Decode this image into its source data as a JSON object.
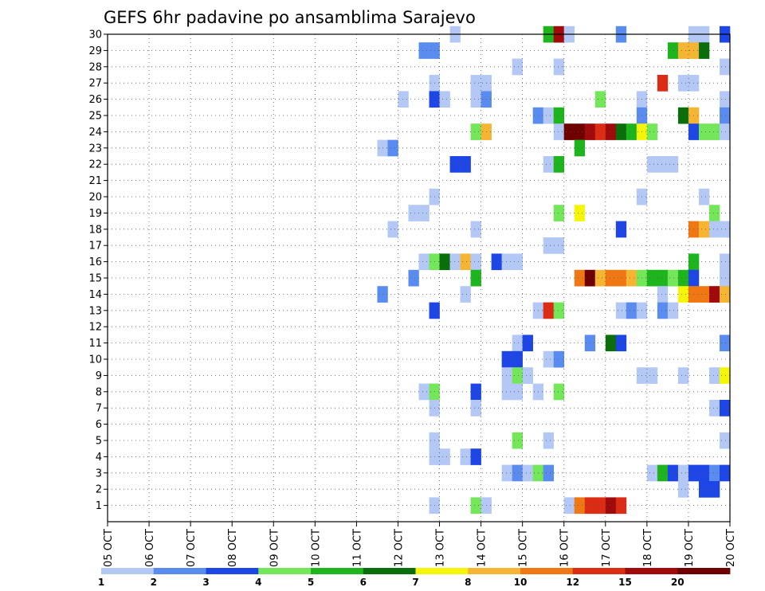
{
  "chart_data": {
    "type": "heatmap",
    "title": "GEFS 6hr padavine po ansamblima Sarajevo",
    "xlabel": "",
    "ylabel": "",
    "x_tick_labels": [
      "05 OCT",
      "06 OCT",
      "07 OCT",
      "08 OCT",
      "09 OCT",
      "10 OCT",
      "11 OCT",
      "12 OCT",
      "13 OCT",
      "14 OCT",
      "15 OCT",
      "16 OCT",
      "17 OCT",
      "18 OCT",
      "19 OCT",
      "20 OCT"
    ],
    "y_tick_labels": [
      "1",
      "2",
      "3",
      "4",
      "5",
      "6",
      "7",
      "8",
      "9",
      "10",
      "11",
      "12",
      "13",
      "14",
      "15",
      "16",
      "17",
      "18",
      "19",
      "20",
      "21",
      "22",
      "23",
      "24",
      "25",
      "26",
      "27",
      "28",
      "29",
      "30"
    ],
    "time_steps_per_day": 4,
    "members_range": [
      0,
      30
    ],
    "grid": true,
    "colorbar": {
      "labels": [
        "1",
        "2",
        "3",
        "4",
        "5",
        "6",
        "7",
        "8",
        "10",
        "12",
        "15",
        "20"
      ],
      "colors": [
        "#b4c8f5",
        "#5a8cf0",
        "#1e46e6",
        "#73e65a",
        "#1eb41e",
        "#0a6e0a",
        "#f5f50a",
        "#f5b432",
        "#f07814",
        "#dc2d14",
        "#a00a0a",
        "#6e0000"
      ]
    },
    "cells": [
      [
        30,
        33,
        1
      ],
      [
        30,
        42,
        5
      ],
      [
        30,
        43,
        11
      ],
      [
        30,
        44,
        1
      ],
      [
        30,
        49,
        2
      ],
      [
        30,
        56,
        1
      ],
      [
        30,
        57,
        1
      ],
      [
        30,
        59,
        3
      ],
      [
        29,
        30,
        2
      ],
      [
        29,
        31,
        2
      ],
      [
        29,
        54,
        5
      ],
      [
        29,
        55,
        8
      ],
      [
        29,
        56,
        8
      ],
      [
        29,
        57,
        6
      ],
      [
        28,
        39,
        1
      ],
      [
        28,
        43,
        1
      ],
      [
        28,
        59,
        1
      ],
      [
        27,
        31,
        1
      ],
      [
        27,
        35,
        1
      ],
      [
        27,
        36,
        1
      ],
      [
        27,
        53,
        10
      ],
      [
        27,
        55,
        1
      ],
      [
        27,
        56,
        1
      ],
      [
        26,
        28,
        1
      ],
      [
        26,
        31,
        3
      ],
      [
        26,
        32,
        1
      ],
      [
        26,
        35,
        1
      ],
      [
        26,
        36,
        2
      ],
      [
        26,
        47,
        4
      ],
      [
        26,
        51,
        1
      ],
      [
        26,
        59,
        1
      ],
      [
        25,
        41,
        2
      ],
      [
        25,
        42,
        1
      ],
      [
        25,
        43,
        5
      ],
      [
        25,
        51,
        2
      ],
      [
        25,
        55,
        6
      ],
      [
        25,
        56,
        8
      ],
      [
        25,
        59,
        2
      ],
      [
        24,
        35,
        4
      ],
      [
        24,
        36,
        8
      ],
      [
        24,
        43,
        1
      ],
      [
        24,
        44,
        12
      ],
      [
        24,
        45,
        12
      ],
      [
        24,
        46,
        11
      ],
      [
        24,
        47,
        10
      ],
      [
        24,
        48,
        11
      ],
      [
        24,
        49,
        6
      ],
      [
        24,
        50,
        5
      ],
      [
        24,
        51,
        7
      ],
      [
        24,
        52,
        4
      ],
      [
        24,
        56,
        3
      ],
      [
        24,
        57,
        4
      ],
      [
        24,
        58,
        4
      ],
      [
        24,
        59,
        1
      ],
      [
        23,
        26,
        1
      ],
      [
        23,
        27,
        2
      ],
      [
        23,
        45,
        5
      ],
      [
        22,
        33,
        3
      ],
      [
        22,
        34,
        3
      ],
      [
        22,
        42,
        1
      ],
      [
        22,
        43,
        5
      ],
      [
        22,
        52,
        1
      ],
      [
        22,
        53,
        1
      ],
      [
        22,
        54,
        1
      ],
      [
        20,
        31,
        1
      ],
      [
        20,
        51,
        1
      ],
      [
        20,
        57,
        1
      ],
      [
        19,
        29,
        1
      ],
      [
        19,
        30,
        1
      ],
      [
        19,
        43,
        4
      ],
      [
        19,
        45,
        7
      ],
      [
        19,
        58,
        4
      ],
      [
        19,
        60,
        10
      ],
      [
        18,
        27,
        1
      ],
      [
        18,
        35,
        1
      ],
      [
        18,
        49,
        3
      ],
      [
        18,
        56,
        9
      ],
      [
        18,
        57,
        8
      ],
      [
        18,
        58,
        1
      ],
      [
        18,
        59,
        1
      ],
      [
        17,
        42,
        1
      ],
      [
        17,
        43,
        1
      ],
      [
        16,
        30,
        1
      ],
      [
        16,
        31,
        4
      ],
      [
        16,
        32,
        6
      ],
      [
        16,
        33,
        1
      ],
      [
        16,
        34,
        8
      ],
      [
        16,
        35,
        1
      ],
      [
        16,
        37,
        3
      ],
      [
        16,
        38,
        1
      ],
      [
        16,
        39,
        1
      ],
      [
        16,
        56,
        5
      ],
      [
        16,
        59,
        1
      ],
      [
        15,
        29,
        2
      ],
      [
        15,
        35,
        5
      ],
      [
        15,
        45,
        9
      ],
      [
        15,
        46,
        12
      ],
      [
        15,
        47,
        8
      ],
      [
        15,
        48,
        9
      ],
      [
        15,
        49,
        9
      ],
      [
        15,
        50,
        8
      ],
      [
        15,
        51,
        4
      ],
      [
        15,
        52,
        5
      ],
      [
        15,
        53,
        5
      ],
      [
        15,
        54,
        4
      ],
      [
        15,
        55,
        5
      ],
      [
        15,
        56,
        3
      ],
      [
        15,
        59,
        1
      ],
      [
        15,
        60,
        2
      ],
      [
        14,
        26,
        2
      ],
      [
        14,
        34,
        1
      ],
      [
        14,
        53,
        1
      ],
      [
        14,
        55,
        7
      ],
      [
        14,
        56,
        9
      ],
      [
        14,
        57,
        9
      ],
      [
        14,
        58,
        11
      ],
      [
        14,
        59,
        8
      ],
      [
        14,
        60,
        4
      ],
      [
        13,
        31,
        3
      ],
      [
        13,
        41,
        1
      ],
      [
        13,
        42,
        10
      ],
      [
        13,
        43,
        4
      ],
      [
        13,
        49,
        1
      ],
      [
        13,
        50,
        2
      ],
      [
        13,
        51,
        1
      ],
      [
        13,
        53,
        2
      ],
      [
        13,
        54,
        1
      ],
      [
        11,
        39,
        1
      ],
      [
        11,
        40,
        3
      ],
      [
        11,
        46,
        2
      ],
      [
        11,
        48,
        6
      ],
      [
        11,
        49,
        3
      ],
      [
        11,
        59,
        2
      ],
      [
        11,
        60,
        4
      ],
      [
        10,
        38,
        3
      ],
      [
        10,
        39,
        3
      ],
      [
        10,
        42,
        1
      ],
      [
        10,
        43,
        2
      ],
      [
        9,
        38,
        1
      ],
      [
        9,
        39,
        4
      ],
      [
        9,
        40,
        1
      ],
      [
        9,
        51,
        1
      ],
      [
        9,
        52,
        1
      ],
      [
        9,
        55,
        1
      ],
      [
        9,
        58,
        1
      ],
      [
        9,
        59,
        7
      ],
      [
        9,
        60,
        1
      ],
      [
        8,
        30,
        1
      ],
      [
        8,
        31,
        4
      ],
      [
        8,
        35,
        3
      ],
      [
        8,
        38,
        1
      ],
      [
        8,
        39,
        1
      ],
      [
        8,
        41,
        1
      ],
      [
        8,
        43,
        4
      ],
      [
        7,
        31,
        1
      ],
      [
        7,
        35,
        1
      ],
      [
        7,
        58,
        1
      ],
      [
        7,
        59,
        3
      ],
      [
        7,
        60,
        12
      ],
      [
        5,
        31,
        1
      ],
      [
        5,
        39,
        4
      ],
      [
        5,
        42,
        1
      ],
      [
        5,
        59,
        1
      ],
      [
        4,
        31,
        1
      ],
      [
        4,
        32,
        1
      ],
      [
        4,
        34,
        1
      ],
      [
        4,
        35,
        3
      ],
      [
        3,
        38,
        1
      ],
      [
        3,
        39,
        2
      ],
      [
        3,
        40,
        1
      ],
      [
        3,
        41,
        4
      ],
      [
        3,
        42,
        2
      ],
      [
        3,
        52,
        1
      ],
      [
        3,
        53,
        5
      ],
      [
        3,
        54,
        3
      ],
      [
        3,
        55,
        1
      ],
      [
        3,
        56,
        3
      ],
      [
        3,
        57,
        3
      ],
      [
        3,
        58,
        2
      ],
      [
        3,
        59,
        3
      ],
      [
        2,
        55,
        1
      ],
      [
        2,
        57,
        3
      ],
      [
        2,
        58,
        3
      ],
      [
        2,
        60,
        3
      ],
      [
        1,
        31,
        1
      ],
      [
        1,
        35,
        4
      ],
      [
        1,
        36,
        1
      ],
      [
        1,
        44,
        1
      ],
      [
        1,
        45,
        9
      ],
      [
        1,
        46,
        10
      ],
      [
        1,
        47,
        10
      ],
      [
        1,
        48,
        11
      ],
      [
        1,
        49,
        10
      ]
    ]
  }
}
